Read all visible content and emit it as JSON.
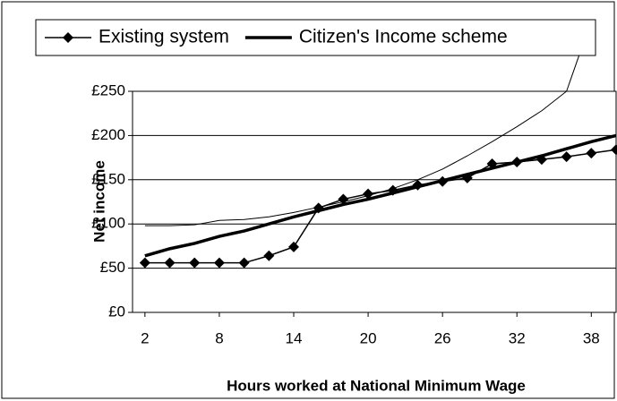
{
  "chart_data": {
    "type": "line",
    "x_label": "Hours worked at National Minimum Wage",
    "y_label": "Net income",
    "x": [
      2,
      4,
      6,
      8,
      10,
      12,
      14,
      16,
      18,
      20,
      22,
      24,
      26,
      28,
      30,
      32,
      34,
      36,
      38,
      40
    ],
    "series": [
      {
        "name": "Existing system",
        "color": "#000000",
        "marker": "diamond",
        "width": 1.5,
        "values": [
          56,
          56,
          56,
          56,
          56,
          64,
          74,
          118,
          128,
          134,
          138,
          144,
          148,
          152,
          168,
          170,
          173,
          176,
          180,
          184
        ]
      },
      {
        "name": "Citizen's Income scheme",
        "color": "#000000",
        "width": 3.5,
        "values": [
          64,
          72,
          78,
          86,
          92,
          100,
          108,
          115,
          122,
          128,
          135,
          142,
          149,
          156,
          163,
          170,
          177,
          185,
          193,
          200
        ]
      },
      {
        "color": "#000000",
        "width": 1,
        "values": [
          98,
          98,
          99,
          104,
          105,
          108,
          113,
          119,
          125,
          132,
          140,
          150,
          162,
          177,
          193,
          210,
          228,
          250,
          330,
          null
        ]
      }
    ],
    "xlim": [
      1,
      40
    ],
    "xticks": [
      2,
      8,
      14,
      20,
      26,
      32,
      38
    ],
    "ylim": [
      0,
      250
    ],
    "yticks": [
      {
        "value": 0,
        "label": "£0"
      },
      {
        "value": 50,
        "label": "£50"
      },
      {
        "value": 100,
        "label": "£100"
      },
      {
        "value": 150,
        "label": "£150"
      },
      {
        "value": 200,
        "label": "£200"
      },
      {
        "value": 250,
        "label": "£250"
      }
    ],
    "grid": true,
    "legend": "top"
  }
}
